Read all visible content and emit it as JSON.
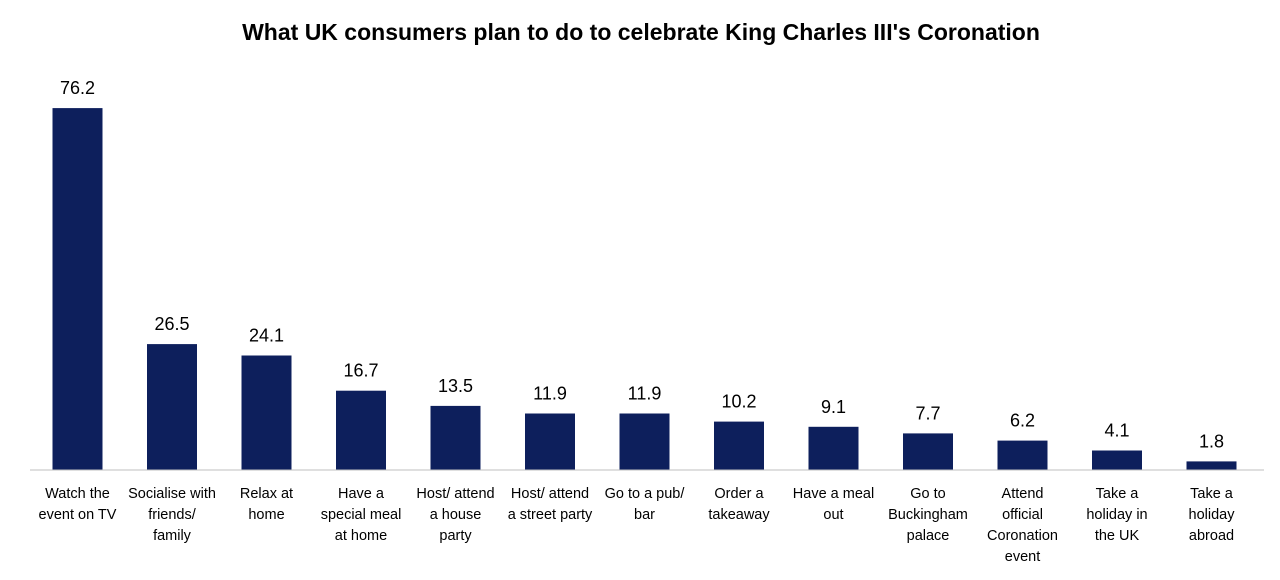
{
  "chart_data": {
    "type": "bar",
    "title": "What UK consumers plan to do to celebrate King Charles III's Coronation",
    "xlabel": "",
    "ylabel": "",
    "ylim": [
      0,
      80
    ],
    "grid": false,
    "legend": "none",
    "bar_color": "#0d1f5c",
    "categories": [
      [
        "Watch the",
        "event on TV"
      ],
      [
        "Socialise with",
        "friends/",
        "family"
      ],
      [
        "Relax at",
        "home"
      ],
      [
        "Have a",
        "special meal",
        "at home"
      ],
      [
        "Host/ attend",
        "a house",
        "party"
      ],
      [
        "Host/ attend",
        "a street party"
      ],
      [
        "Go to a pub/",
        "bar"
      ],
      [
        "Order a",
        "takeaway"
      ],
      [
        "Have a meal",
        "out"
      ],
      [
        "Go to",
        "Buckingham",
        "palace"
      ],
      [
        "Attend",
        "official",
        "Coronation",
        "event"
      ],
      [
        "Take a",
        "holiday in",
        "the UK"
      ],
      [
        "Take a",
        "holiday",
        "abroad"
      ]
    ],
    "values": [
      76.2,
      26.5,
      24.1,
      16.7,
      13.5,
      11.9,
      11.9,
      10.2,
      9.1,
      7.7,
      6.2,
      4.1,
      1.8
    ]
  }
}
